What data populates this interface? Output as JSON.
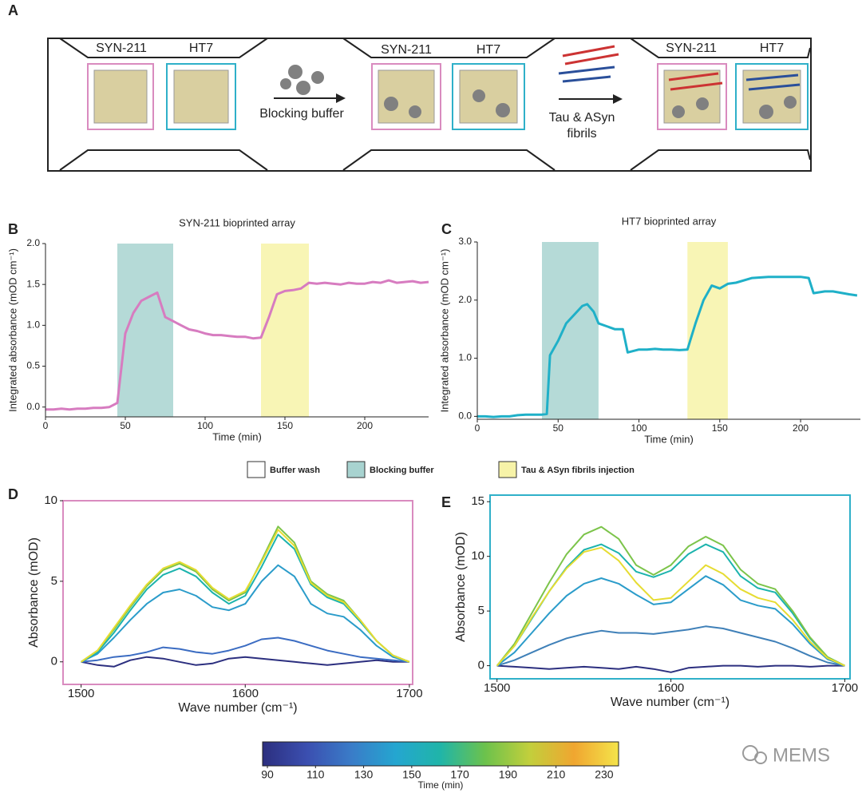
{
  "panel_labels": [
    "A",
    "B",
    "C",
    "D",
    "E"
  ],
  "panel_a": {
    "stages": [
      {
        "left": "SYN-211",
        "right": "HT7"
      },
      {
        "left": "SYN-211",
        "right": "HT7"
      },
      {
        "left": "SYN-211",
        "right": "HT7"
      }
    ],
    "steps": [
      {
        "lines": [
          "Blocking buffer"
        ]
      },
      {
        "lines": [
          "Tau & ASyn",
          "fibrils"
        ]
      }
    ]
  },
  "legend": [
    {
      "label": "Buffer wash",
      "color": "#ffffff"
    },
    {
      "label": "Blocking buffer",
      "color": "#a8d3d0"
    },
    {
      "label": "Tau & ASyn fibrils injection",
      "color": "#f7f3a8"
    }
  ],
  "chart_data": [
    {
      "type": "line",
      "title": "SYN-211 bioprinted array",
      "xlabel": "Time (min)",
      "ylabel": "Integrated absorbance (mOD cm⁻¹)",
      "x": [
        0,
        5,
        10,
        15,
        20,
        25,
        30,
        35,
        40,
        45,
        50,
        55,
        60,
        65,
        70,
        75,
        80,
        85,
        90,
        95,
        100,
        105,
        110,
        115,
        120,
        125,
        130,
        135,
        140,
        145,
        150,
        155,
        160,
        165,
        170,
        175,
        180,
        185,
        190,
        195,
        200,
        205,
        210,
        215,
        220,
        225,
        230,
        235,
        240
      ],
      "series": [
        {
          "color": "#d77cc0",
          "values": [
            -0.03,
            -0.03,
            -0.02,
            -0.03,
            -0.02,
            -0.02,
            -0.01,
            -0.01,
            0.0,
            0.05,
            0.9,
            1.15,
            1.3,
            1.35,
            1.4,
            1.1,
            1.05,
            1.0,
            0.95,
            0.93,
            0.9,
            0.88,
            0.88,
            0.87,
            0.86,
            0.86,
            0.84,
            0.85,
            1.1,
            1.38,
            1.42,
            1.43,
            1.45,
            1.52,
            1.51,
            1.52,
            1.51,
            1.5,
            1.52,
            1.51,
            1.51,
            1.53,
            1.52,
            1.55,
            1.52,
            1.53,
            1.54,
            1.52,
            1.53
          ]
        }
      ],
      "bands": [
        {
          "from": 45,
          "to": 80,
          "color": "#a8d3d0"
        },
        {
          "from": 135,
          "to": 165,
          "color": "#f7f3a8"
        }
      ],
      "xlim": [
        0,
        240
      ],
      "xticks": [
        0,
        50,
        100,
        150,
        200
      ],
      "ylim": [
        -0.12,
        2.0
      ],
      "yticks": [
        {
          "value": 0,
          "label": "0.0"
        },
        {
          "value": 0.5,
          "label": "0.5"
        },
        {
          "value": 1,
          "label": "1.0"
        },
        {
          "value": 1.5,
          "label": "1.5"
        },
        {
          "value": 2,
          "label": "2.0"
        }
      ]
    },
    {
      "type": "line",
      "title": "HT7 bioprinted array",
      "xlabel": "Time (min)",
      "ylabel": "Integrated absorbance (mOD cm⁻¹)",
      "x": [
        0,
        5,
        10,
        15,
        20,
        25,
        30,
        35,
        40,
        43,
        45,
        50,
        55,
        60,
        65,
        68,
        72,
        75,
        80,
        85,
        90,
        93,
        100,
        105,
        110,
        115,
        120,
        125,
        130,
        135,
        140,
        145,
        150,
        155,
        160,
        170,
        180,
        190,
        200,
        205,
        208,
        215,
        220,
        230,
        235
      ],
      "series": [
        {
          "color": "#1fb0c8",
          "values": [
            0,
            0,
            -0.01,
            0,
            0,
            0.02,
            0.03,
            0.03,
            0.03,
            0.04,
            1.05,
            1.3,
            1.6,
            1.75,
            1.9,
            1.93,
            1.8,
            1.6,
            1.55,
            1.5,
            1.5,
            1.1,
            1.15,
            1.15,
            1.16,
            1.15,
            1.15,
            1.14,
            1.15,
            1.6,
            2.0,
            2.25,
            2.2,
            2.28,
            2.3,
            2.38,
            2.4,
            2.4,
            2.4,
            2.38,
            2.12,
            2.15,
            2.15,
            2.1,
            2.08
          ]
        }
      ],
      "bands": [
        {
          "from": 40,
          "to": 75,
          "color": "#a8d3d0"
        },
        {
          "from": 130,
          "to": 155,
          "color": "#f7f3a8"
        }
      ],
      "xlim": [
        0,
        237
      ],
      "xticks": [
        0,
        50,
        100,
        150,
        200
      ],
      "ylim": [
        -0.05,
        3.0
      ],
      "yticks": [
        {
          "value": 0,
          "label": "0.0"
        },
        {
          "value": 1,
          "label": "1.0"
        },
        {
          "value": 2,
          "label": "2.0"
        },
        {
          "value": 3,
          "label": "3.0"
        }
      ]
    },
    {
      "type": "line",
      "xlabel": "Wave number (cm⁻¹)",
      "ylabel": "Absorbance (mOD)",
      "frame_color": "#d98bbf",
      "x": [
        1500,
        1510,
        1520,
        1530,
        1540,
        1550,
        1560,
        1570,
        1580,
        1590,
        1600,
        1610,
        1620,
        1630,
        1640,
        1650,
        1660,
        1670,
        1680,
        1690,
        1700
      ],
      "series": [
        {
          "color": "#2c2f7f",
          "values": [
            0,
            -0.2,
            -0.3,
            0.1,
            0.3,
            0.2,
            0.0,
            -0.2,
            -0.1,
            0.2,
            0.3,
            0.2,
            0.1,
            0,
            -0.1,
            -0.2,
            -0.1,
            0,
            0.1,
            0,
            0
          ]
        },
        {
          "color": "#3b6cc2",
          "values": [
            0,
            0.1,
            0.3,
            0.4,
            0.6,
            0.9,
            0.8,
            0.6,
            0.5,
            0.7,
            1.0,
            1.4,
            1.5,
            1.3,
            1.0,
            0.7,
            0.5,
            0.3,
            0.2,
            0.1,
            0
          ]
        },
        {
          "color": "#2b9cca",
          "values": [
            0,
            0.5,
            1.5,
            2.6,
            3.6,
            4.3,
            4.5,
            4.1,
            3.4,
            3.2,
            3.6,
            5.0,
            6.0,
            5.3,
            3.6,
            3.0,
            2.8,
            2.0,
            1.0,
            0.3,
            0
          ]
        },
        {
          "color": "#1cb3ad",
          "values": [
            0,
            0.6,
            1.8,
            3.2,
            4.5,
            5.4,
            5.8,
            5.3,
            4.3,
            3.6,
            4.1,
            5.9,
            7.9,
            7.0,
            4.8,
            4.0,
            3.6,
            2.5,
            1.3,
            0.4,
            0
          ]
        },
        {
          "color": "#7cc44a",
          "values": [
            0,
            0.7,
            2.0,
            3.4,
            4.7,
            5.7,
            6.1,
            5.6,
            4.5,
            3.8,
            4.3,
            6.3,
            8.4,
            7.4,
            5.0,
            4.2,
            3.8,
            2.6,
            1.3,
            0.4,
            0
          ]
        },
        {
          "color": "#e6dc32",
          "values": [
            0,
            0.7,
            2.1,
            3.5,
            4.8,
            5.8,
            6.2,
            5.7,
            4.6,
            3.9,
            4.4,
            6.2,
            8.2,
            7.2,
            4.9,
            4.1,
            3.7,
            2.6,
            1.3,
            0.4,
            0
          ]
        }
      ],
      "xlim": [
        1489,
        1702
      ],
      "xticks": [
        1500,
        1600,
        1700
      ],
      "ylim": [
        -1.4,
        10
      ],
      "yticks": [
        0,
        5,
        10
      ]
    },
    {
      "type": "line",
      "xlabel": "Wave number (cm⁻¹)",
      "ylabel": "Absorbance (mOD)",
      "frame_color": "#2fb0c9",
      "x": [
        1500,
        1510,
        1520,
        1530,
        1540,
        1550,
        1560,
        1570,
        1580,
        1590,
        1600,
        1610,
        1620,
        1630,
        1640,
        1650,
        1660,
        1670,
        1680,
        1690,
        1700
      ],
      "series": [
        {
          "color": "#2c2f7f",
          "values": [
            0,
            -0.1,
            -0.2,
            -0.3,
            -0.2,
            -0.1,
            -0.2,
            -0.3,
            -0.1,
            -0.3,
            -0.6,
            -0.2,
            -0.1,
            0,
            0,
            -0.1,
            0,
            0,
            -0.1,
            0,
            0
          ]
        },
        {
          "color": "#3f80b8",
          "values": [
            0,
            0.5,
            1.2,
            1.9,
            2.5,
            2.9,
            3.2,
            3.0,
            3.0,
            2.9,
            3.1,
            3.3,
            3.6,
            3.4,
            3.0,
            2.6,
            2.2,
            1.6,
            0.9,
            0.3,
            0
          ]
        },
        {
          "color": "#2b9cca",
          "values": [
            0,
            1.2,
            3.0,
            4.8,
            6.4,
            7.5,
            8.0,
            7.5,
            6.5,
            5.6,
            5.8,
            7.0,
            8.2,
            7.4,
            6.0,
            5.5,
            5.2,
            3.8,
            2.0,
            0.6,
            0
          ]
        },
        {
          "color": "#1cb3ad",
          "values": [
            0,
            1.8,
            4.3,
            6.8,
            9.0,
            10.6,
            11.1,
            10.3,
            8.6,
            8.1,
            8.7,
            10.2,
            11.1,
            10.4,
            8.2,
            7.1,
            6.7,
            4.8,
            2.5,
            0.8,
            0
          ]
        },
        {
          "color": "#7cc44a",
          "values": [
            0,
            2.0,
            4.8,
            7.6,
            10.2,
            12.0,
            12.7,
            11.6,
            9.2,
            8.3,
            9.2,
            10.9,
            11.8,
            11.0,
            8.8,
            7.5,
            7.0,
            5.0,
            2.6,
            0.8,
            0
          ]
        },
        {
          "color": "#e6dc32",
          "values": [
            0,
            1.8,
            4.4,
            6.8,
            8.9,
            10.4,
            10.8,
            9.6,
            7.6,
            6.0,
            6.2,
            7.7,
            9.2,
            8.4,
            7.0,
            6.2,
            5.8,
            4.2,
            2.2,
            0.7,
            0
          ]
        }
      ],
      "xlim": [
        1496,
        1703
      ],
      "xticks": [
        1500,
        1600,
        1700
      ],
      "ylim": [
        -1.2,
        15.6
      ],
      "yticks": [
        0,
        5,
        10,
        15
      ]
    }
  ],
  "colorbar": {
    "label": "Time (min)",
    "lim": [
      88,
      236
    ],
    "ticks": [
      90,
      110,
      130,
      150,
      170,
      190,
      210,
      230
    ],
    "colors": [
      "#2c2f7f",
      "#3b4fb0",
      "#3a7cc8",
      "#24a6d0",
      "#20b5a8",
      "#6cc24c",
      "#c2cf3c",
      "#f0a630",
      "#f4e44a"
    ]
  },
  "watermark": "MEMS"
}
